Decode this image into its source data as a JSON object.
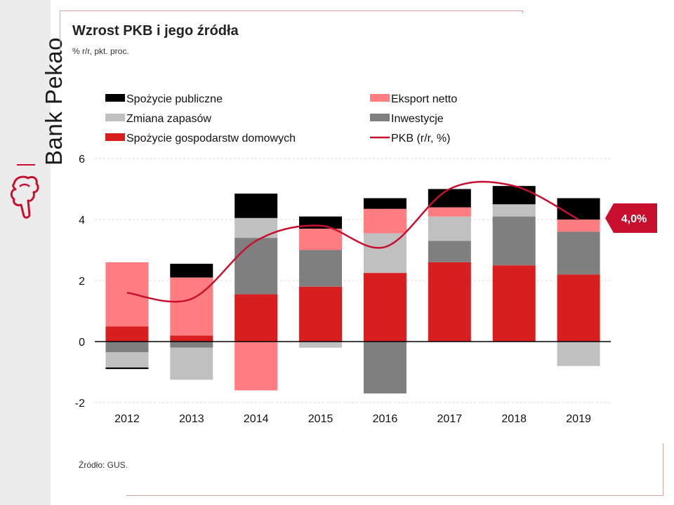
{
  "brand": {
    "name": "Bank Pekao"
  },
  "header": {
    "title": "Wzrost PKB i jego źródła",
    "subtitle": "% r/r, pkt. proc."
  },
  "footer": {
    "source": "Źródło: GUS."
  },
  "colors": {
    "accent": "#c8102e",
    "spozycie_publiczne": "#000000",
    "eksport_netto": "#ff7c80",
    "zmiana_zapasow": "#c0c0c0",
    "inwestycje": "#7f7f7f",
    "spozycie_gd": "#d81e1e",
    "pkb_line": "#c8102e"
  },
  "chart_data": {
    "type": "bar",
    "stacked": true,
    "categories": [
      "2012",
      "2013",
      "2014",
      "2015",
      "2016",
      "2017",
      "2018",
      "2019"
    ],
    "ylim": [
      -2,
      6
    ],
    "yticks": [
      "-2",
      "0",
      "2",
      "4",
      "6"
    ],
    "ytick_values": [
      -2,
      0,
      2,
      4,
      6
    ],
    "grid": true,
    "legend_position": "top",
    "series": [
      {
        "name": "Spożycie gospodarstw domowych",
        "key": "spozycie_gd",
        "values": [
          0.5,
          0.2,
          1.55,
          1.8,
          2.25,
          2.6,
          2.5,
          2.2
        ]
      },
      {
        "name": "Inwestycje",
        "key": "inwestycje",
        "values": [
          -0.35,
          -0.2,
          1.85,
          1.2,
          -1.7,
          0.7,
          1.6,
          1.4
        ]
      },
      {
        "name": "Zmiana zapasów",
        "key": "zmiana_zapasow",
        "values": [
          -0.5,
          -1.05,
          0.65,
          -0.2,
          1.3,
          0.8,
          0.4,
          -0.8
        ]
      },
      {
        "name": "Eksport netto",
        "key": "eksport_netto",
        "values": [
          2.1,
          1.9,
          -1.6,
          0.7,
          0.8,
          0.3,
          0.0,
          0.4
        ]
      },
      {
        "name": "Spożycie publiczne",
        "key": "spozycie_publiczne",
        "values": [
          -0.05,
          0.45,
          0.8,
          0.4,
          0.35,
          0.6,
          0.6,
          0.7
        ]
      }
    ],
    "line": {
      "name": "PKB (r/r, %)",
      "key": "pkb_line",
      "values": [
        1.6,
        1.4,
        3.3,
        3.8,
        3.1,
        5.0,
        5.1,
        4.0
      ]
    },
    "legend": [
      {
        "name": "Spożycie publiczne",
        "key": "spozycie_publiczne",
        "kind": "box"
      },
      {
        "name": "Eksport netto",
        "key": "eksport_netto",
        "kind": "box"
      },
      {
        "name": "Zmiana zapasów",
        "key": "zmiana_zapasow",
        "kind": "box"
      },
      {
        "name": "Inwestycje",
        "key": "inwestycje",
        "kind": "box"
      },
      {
        "name": "Spożycie gospodarstw domowych",
        "key": "spozycie_gd",
        "kind": "box"
      },
      {
        "name": "PKB (r/r, %)",
        "key": "pkb_line",
        "kind": "line"
      }
    ],
    "annotation": {
      "text": "4,0%",
      "value": 4.0,
      "category": "2019"
    }
  }
}
